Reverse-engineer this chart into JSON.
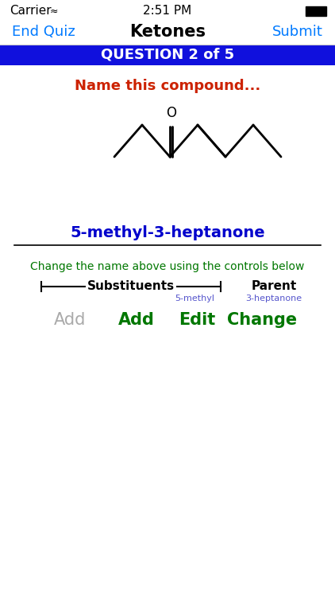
{
  "bg_color": "#ffffff",
  "status_bar_text": "2:51 PM",
  "carrier_text": "Carrier",
  "nav_title": "Ketones",
  "nav_left": "End Quiz",
  "nav_right": "Submit",
  "nav_color": "#007AFF",
  "question_banner_text": "QUESTION 2 of 5",
  "question_banner_bg": "#1010dd",
  "question_banner_fg": "#ffffff",
  "prompt_text": "Name this compound...",
  "prompt_color": "#cc2200",
  "answer_text": "5-methyl-3-heptanone",
  "answer_color": "#0000cc",
  "hint_text": "Change the name above using the controls below",
  "hint_color": "#007700",
  "substituents_label": "Substituents",
  "parent_label": "Parent",
  "sub_sublabel": "5-methyl",
  "par_sublabel": "3-heptanone",
  "sublabel_color": "#5555cc",
  "btn_add_gray": "Add",
  "btn_add": "Add",
  "btn_edit": "Edit",
  "btn_change": "Change",
  "btn_green_color": "#007700",
  "btn_gray_color": "#aaaaaa",
  "line_color": "#000000",
  "mol_lw": 2.0
}
